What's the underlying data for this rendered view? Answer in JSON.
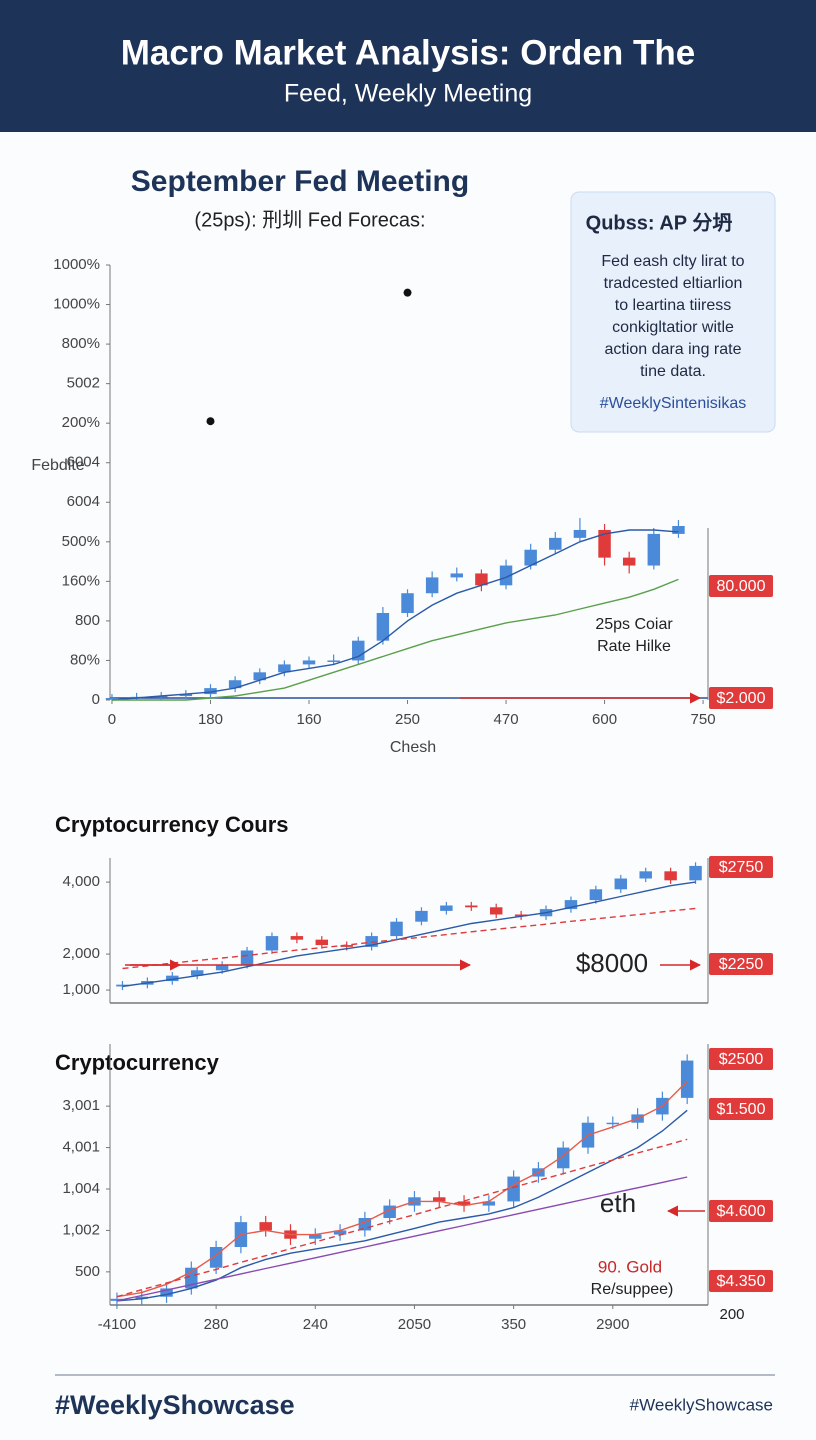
{
  "header": {
    "title": "Macro Market Analysis: Orden The",
    "subtitle": "Feed, Weekly Meeting"
  },
  "info_box": {
    "title": "Qubss: AP 分坍",
    "lines": [
      "Fed eash clty lirat to",
      "tradcested eltiarlion",
      "to  leartina tiiress",
      "conkigltatior witle",
      "action dara ing rate",
      "tine data."
    ],
    "hashtag": "#WeeklySintenisikas"
  },
  "footer": {
    "left": "#WeeklyShowcase",
    "right": "#WeeklyShowcase"
  },
  "chart_data": [
    {
      "type": "candlestick",
      "title": "September Fed Meeting",
      "subtitle": "(25ps): 刑圳 Fed Forecas:",
      "x_label": "Chesh",
      "y_label": "Febdite",
      "xlim": [
        -0.02,
        6.05
      ],
      "ylim": [
        0,
        11
      ],
      "xticks": [
        {
          "value": 0,
          "label": "0"
        },
        {
          "value": 1,
          "label": "180"
        },
        {
          "value": 2,
          "label": "160"
        },
        {
          "value": 3,
          "label": "250"
        },
        {
          "value": 4,
          "label": "470"
        },
        {
          "value": 5,
          "label": "600"
        },
        {
          "value": 6,
          "label": "750"
        }
      ],
      "yticks": [
        {
          "value": 0,
          "label": "0"
        },
        {
          "value": 1,
          "label": "80%"
        },
        {
          "value": 2,
          "label": "800"
        },
        {
          "value": 3,
          "label": "160%"
        },
        {
          "value": 4,
          "label": "500%"
        },
        {
          "value": 5,
          "label": "6004"
        },
        {
          "value": 6,
          "label": "6004"
        },
        {
          "value": 7,
          "label": "200%"
        },
        {
          "value": 8,
          "label": "5002"
        },
        {
          "value": 9,
          "label": "800%"
        },
        {
          "value": 10,
          "label": "1000%"
        },
        {
          "value": 11,
          "label": "1000%"
        }
      ],
      "up_color": "#4a8ad8",
      "down_color": "#e03a3a",
      "x": [
        0,
        0.25,
        0.5,
        0.75,
        1,
        1.25,
        1.5,
        1.75,
        2,
        2.25,
        2.5,
        2.75,
        3,
        3.25,
        3.5,
        3.75,
        4,
        4.25,
        4.5,
        4.75,
        5,
        5.25,
        5.5,
        5.75
      ],
      "open": [
        0.02,
        0.05,
        0.08,
        0.1,
        0.15,
        0.3,
        0.5,
        0.7,
        0.9,
        1.0,
        1.0,
        1.5,
        2.2,
        2.7,
        3.1,
        3.2,
        2.9,
        3.4,
        3.8,
        4.1,
        4.3,
        3.6,
        3.4,
        4.2
      ],
      "high": [
        0.15,
        0.18,
        0.2,
        0.25,
        0.4,
        0.6,
        0.8,
        1.0,
        1.1,
        1.15,
        1.6,
        2.35,
        2.8,
        3.25,
        3.35,
        3.3,
        3.55,
        3.95,
        4.25,
        4.6,
        4.45,
        3.75,
        4.35,
        4.55
      ],
      "low": [
        0,
        0,
        0,
        0.02,
        0.05,
        0.2,
        0.4,
        0.6,
        0.8,
        0.9,
        0.9,
        1.4,
        2.1,
        2.6,
        3.0,
        2.75,
        2.8,
        3.3,
        3.7,
        4.0,
        3.4,
        3.2,
        3.3,
        4.1
      ],
      "close": [
        0.05,
        0.08,
        0.1,
        0.15,
        0.3,
        0.5,
        0.7,
        0.9,
        1.0,
        1.0,
        1.5,
        2.2,
        2.7,
        3.1,
        3.2,
        2.9,
        3.4,
        3.8,
        4.1,
        4.3,
        3.6,
        3.4,
        4.2,
        4.4
      ],
      "lines": [
        {
          "color": "#2a5aa8",
          "dash": false,
          "values": [
            0,
            0.05,
            0.1,
            0.15,
            0.2,
            0.3,
            0.5,
            0.7,
            0.8,
            0.9,
            1.1,
            1.5,
            2,
            2.4,
            2.7,
            2.9,
            3.1,
            3.4,
            3.7,
            4.0,
            4.2,
            4.3,
            4.3,
            4.25
          ]
        },
        {
          "color": "#5aa04a",
          "dash": false,
          "values": [
            0,
            0,
            0,
            0,
            0.05,
            0.1,
            0.2,
            0.3,
            0.5,
            0.7,
            0.9,
            1.1,
            1.3,
            1.5,
            1.65,
            1.8,
            1.95,
            2.05,
            2.15,
            2.3,
            2.45,
            2.6,
            2.8,
            3.05
          ]
        }
      ],
      "points": {
        "color": "#111111",
        "x": [
          1,
          3
        ],
        "y": [
          7.05,
          10.3
        ]
      },
      "annotations": [
        {
          "text": "80.000",
          "style": "tag"
        },
        {
          "text": "$2.000",
          "style": "tag"
        },
        {
          "text": "25ps Coiar",
          "style": "note"
        },
        {
          "text": "Rate Hilke",
          "style": "note"
        }
      ]
    },
    {
      "type": "candlestick",
      "title": "Cryptocurrency Cours",
      "ylim": [
        640,
        4670
      ],
      "yticks": [
        {
          "value": 1000,
          "label": "1,000"
        },
        {
          "value": 2000,
          "label": "2,000"
        },
        {
          "value": 4000,
          "label": "4,000"
        }
      ],
      "up_color": "#4a8ad8",
      "down_color": "#e03a3a",
      "open": [
        1100,
        1150,
        1250,
        1400,
        1550,
        1700,
        2100,
        2500,
        2400,
        2250,
        2200,
        2500,
        2900,
        3200,
        3350,
        3300,
        3100,
        3050,
        3250,
        3500,
        3800,
        4100,
        4300,
        4050
      ],
      "high": [
        1250,
        1350,
        1500,
        1650,
        1800,
        2200,
        2600,
        2600,
        2500,
        2350,
        2600,
        3000,
        3300,
        3450,
        3450,
        3400,
        3200,
        3350,
        3600,
        3900,
        4200,
        4400,
        4400,
        4550
      ],
      "low": [
        1000,
        1050,
        1150,
        1300,
        1450,
        1600,
        2000,
        2300,
        2150,
        2100,
        2100,
        2400,
        2800,
        3100,
        3200,
        3000,
        2950,
        2950,
        3150,
        3400,
        3700,
        4000,
        3950,
        3950
      ],
      "close": [
        1150,
        1250,
        1400,
        1550,
        1700,
        2100,
        2500,
        2400,
        2250,
        2200,
        2500,
        2900,
        3200,
        3350,
        3300,
        3100,
        3050,
        3250,
        3500,
        3800,
        4100,
        4300,
        4050,
        4450
      ],
      "lines": [
        {
          "color": "#2a5aa8",
          "dash": false,
          "values": [
            1100,
            1200,
            1300,
            1400,
            1500,
            1650,
            1800,
            1950,
            2050,
            2150,
            2250,
            2400,
            2550,
            2700,
            2850,
            2950,
            3050,
            3150,
            3300,
            3450,
            3600,
            3750,
            3900,
            4000
          ]
        },
        {
          "color": "#e03a3a",
          "dash": true,
          "values": [
            1600,
            1670,
            1750,
            1820,
            1890,
            1960,
            2040,
            2110,
            2180,
            2250,
            2330,
            2400,
            2470,
            2540,
            2620,
            2690,
            2760,
            2830,
            2910,
            2980,
            3050,
            3120,
            3200,
            3270
          ]
        }
      ],
      "annotations": [
        {
          "text": "$2750",
          "style": "tag"
        },
        {
          "text": "$2250",
          "style": "tag"
        },
        {
          "text": "$8000",
          "style": "big"
        }
      ]
    },
    {
      "type": "candlestick",
      "title": "Cryptocurrency",
      "xlim": [
        -0.07,
        5.96
      ],
      "ylim": [
        -0.8,
        5.5
      ],
      "xticks": [
        {
          "value": 0,
          "label": "-4100"
        },
        {
          "value": 1,
          "label": "280"
        },
        {
          "value": 2,
          "label": "240"
        },
        {
          "value": 3,
          "label": "2050"
        },
        {
          "value": 4,
          "label": "350"
        },
        {
          "value": 5,
          "label": "2900"
        }
      ],
      "yticks": [
        {
          "value": 0,
          "label": "500"
        },
        {
          "value": 1,
          "label": "1,002"
        },
        {
          "value": 2,
          "label": "1,004"
        },
        {
          "value": 3,
          "label": "4,001"
        },
        {
          "value": 4,
          "label": "3,001"
        }
      ],
      "up_color": "#4a8ad8",
      "down_color": "#e03a3a",
      "x": [
        0,
        0.25,
        0.5,
        0.75,
        1,
        1.25,
        1.5,
        1.75,
        2,
        2.25,
        2.5,
        2.75,
        3,
        3.25,
        3.5,
        3.75,
        4,
        4.25,
        4.5,
        4.75,
        5,
        5.25,
        5.5,
        5.75
      ],
      "open": [
        -0.7,
        -0.65,
        -0.6,
        -0.4,
        0.1,
        0.6,
        1.2,
        1.0,
        0.8,
        0.9,
        1.0,
        1.3,
        1.6,
        1.8,
        1.7,
        1.6,
        1.7,
        2.3,
        2.5,
        3.0,
        3.6,
        3.6,
        3.8,
        4.2
      ],
      "high": [
        -0.5,
        -0.45,
        -0.25,
        0.25,
        0.75,
        1.35,
        1.35,
        1.15,
        1.05,
        1.15,
        1.45,
        1.75,
        1.95,
        1.95,
        1.85,
        1.85,
        2.45,
        2.65,
        3.15,
        3.75,
        3.75,
        3.95,
        4.35,
        5.25
      ],
      "low": [
        -0.85,
        -0.8,
        -0.75,
        -0.55,
        -0.05,
        0.45,
        0.85,
        0.65,
        0.65,
        0.75,
        0.85,
        1.15,
        1.45,
        1.55,
        1.45,
        1.45,
        1.55,
        2.15,
        2.35,
        2.85,
        3.45,
        3.45,
        3.65,
        4.05
      ],
      "close": [
        -0.65,
        -0.6,
        -0.4,
        0.1,
        0.6,
        1.2,
        1.0,
        0.8,
        0.9,
        1.0,
        1.3,
        1.6,
        1.8,
        1.7,
        1.6,
        1.7,
        2.3,
        2.5,
        3.0,
        3.6,
        3.6,
        3.8,
        4.2,
        5.1
      ],
      "lines": [
        {
          "color": "#2a5aa8",
          "dash": false,
          "values": [
            -0.7,
            -0.65,
            -0.55,
            -0.4,
            -0.2,
            0.1,
            0.3,
            0.45,
            0.55,
            0.65,
            0.75,
            0.9,
            1.05,
            1.2,
            1.3,
            1.4,
            1.55,
            1.8,
            2.1,
            2.4,
            2.7,
            3.0,
            3.4,
            3.9
          ]
        },
        {
          "color": "#e85a4a",
          "dash": false,
          "values": [
            -0.6,
            -0.5,
            -0.3,
            0,
            0.4,
            0.9,
            1.0,
            0.9,
            0.9,
            1.0,
            1.2,
            1.5,
            1.7,
            1.7,
            1.6,
            1.7,
            2.1,
            2.4,
            2.8,
            3.3,
            3.5,
            3.7,
            4.0,
            4.6
          ]
        },
        {
          "color": "#e03a3a",
          "dash": true,
          "values": [
            -0.6,
            -0.43,
            -0.27,
            -0.1,
            0.06,
            0.23,
            0.39,
            0.56,
            0.72,
            0.89,
            1.05,
            1.22,
            1.38,
            1.55,
            1.71,
            1.88,
            2.04,
            2.21,
            2.37,
            2.54,
            2.7,
            2.87,
            3.03,
            3.2
          ]
        },
        {
          "color": "#8a4ab0",
          "dash": false,
          "values": [
            -0.7,
            -0.57,
            -0.44,
            -0.31,
            -0.18,
            -0.05,
            0.08,
            0.21,
            0.34,
            0.47,
            0.6,
            0.73,
            0.86,
            0.99,
            1.12,
            1.25,
            1.38,
            1.51,
            1.64,
            1.77,
            1.9,
            2.03,
            2.16,
            2.29
          ]
        }
      ],
      "annotations": [
        {
          "text": "$2500",
          "style": "tag"
        },
        {
          "text": "$1.500",
          "style": "tag"
        },
        {
          "text": "eth",
          "style": "big"
        },
        {
          "text": "$4.600",
          "style": "tag"
        },
        {
          "text": "$4.350",
          "style": "tag"
        },
        {
          "text": "90. Gold",
          "style": "red-note"
        },
        {
          "text": "Re/suppee)",
          "style": "note"
        },
        {
          "text": "200",
          "style": "plain"
        }
      ]
    }
  ]
}
